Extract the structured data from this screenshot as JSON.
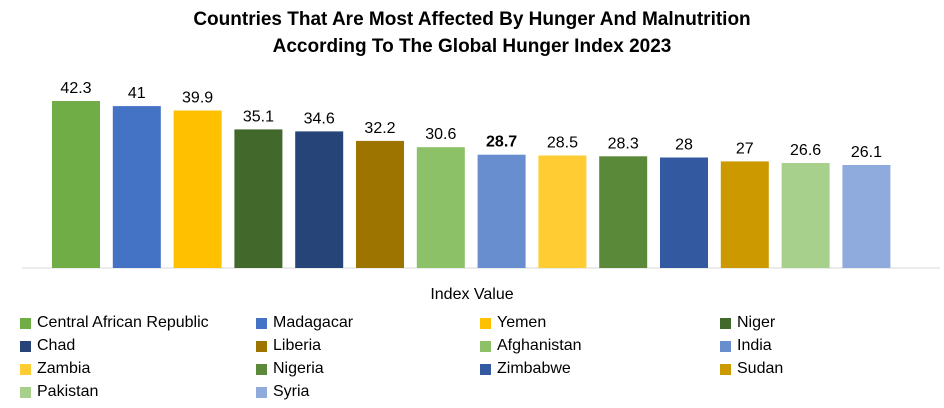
{
  "chart_data": {
    "type": "bar",
    "title_line1": "Countries That Are Most Affected By Hunger And Malnutrition",
    "title_line2": "According To The Global Hunger Index 2023",
    "xlabel": "Index Value",
    "ylim": [
      0,
      42.3
    ],
    "grid": false,
    "legend_position": "bottom",
    "categories": [
      "Central African Republic",
      "Madagacar",
      "Yemen",
      "Niger",
      "Chad",
      "Liberia",
      "Afghanistan",
      "India",
      "Zambia",
      "Nigeria",
      "Zimbabwe",
      "Sudan",
      "Pakistan",
      "Syria"
    ],
    "values": [
      42.3,
      41,
      39.9,
      35.1,
      34.6,
      32.2,
      30.6,
      28.7,
      28.5,
      28.3,
      28,
      27,
      26.6,
      26.1
    ],
    "value_labels": [
      "42.3",
      "41",
      "39.9",
      "35.1",
      "34.6",
      "32.2",
      "30.6",
      "28.7",
      "28.5",
      "28.3",
      "28",
      "27",
      "26.6",
      "26.1"
    ],
    "bold_label_index": 7,
    "colors": [
      "#70ad47",
      "#4472c4",
      "#ffc000",
      "#43682b",
      "#264478",
      "#9e7400",
      "#8cc168",
      "#698ed0",
      "#ffcd33",
      "#5a8a39",
      "#335aa1",
      "#cc9a00",
      "#a8d08d",
      "#8faadc"
    ]
  }
}
